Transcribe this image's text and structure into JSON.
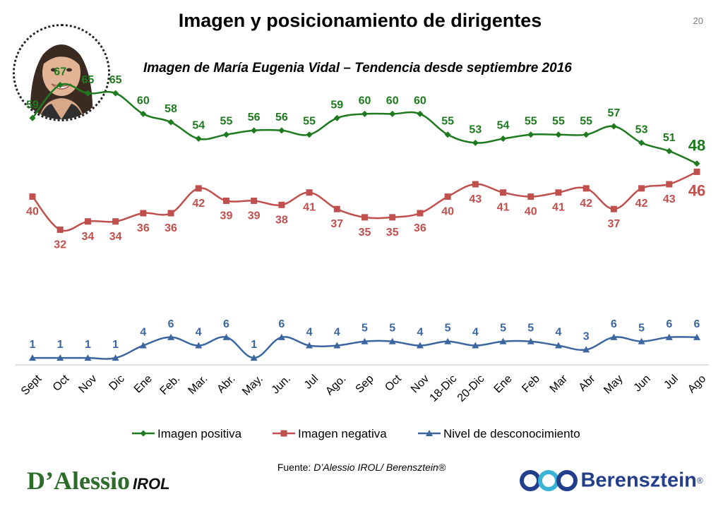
{
  "header": {
    "title": "Imagen y posicionamiento de dirigentes",
    "page_number": "20",
    "subtitle": "Imagen de María Eugenia Vidal – Tendencia desde septiembre 2016"
  },
  "footer": {
    "source_prefix": "Fuente: ",
    "source_text": "D’Alessio IROL/ Berensztein®",
    "logo_left_main": "D’Alessio",
    "logo_left_sub": "IROL",
    "logo_right": "Berensztein",
    "logo_right_mark": "®"
  },
  "chart_data": {
    "type": "line",
    "categories": [
      "Sept",
      "Oct",
      "Nov",
      "Dic",
      "Ene",
      "Feb.",
      "Mar.",
      "Abr.",
      "May.",
      "Jun.",
      "Jul",
      "Ago.",
      "Sep",
      "Oct",
      "Nov",
      "18-Dic",
      "20-Dic",
      "Ene",
      "Feb",
      "Mar",
      "Abr",
      "May",
      "Jun",
      "Jul",
      "Ago"
    ],
    "series": [
      {
        "name": "Imagen positiva",
        "color": "#1e7a1e",
        "marker": "diamond",
        "values": [
          59,
          67,
          65,
          65,
          60,
          58,
          54,
          55,
          56,
          56,
          55,
          59,
          60,
          60,
          60,
          55,
          53,
          54,
          55,
          55,
          55,
          57,
          53,
          51,
          48
        ]
      },
      {
        "name": "Imagen negativa",
        "color": "#c0504d",
        "marker": "square",
        "values": [
          40,
          32,
          34,
          34,
          36,
          36,
          42,
          39,
          39,
          38,
          41,
          37,
          35,
          35,
          36,
          40,
          43,
          41,
          40,
          41,
          42,
          37,
          42,
          43,
          46
        ]
      },
      {
        "name": "Nivel de desconocimiento",
        "color": "#3b66a0",
        "marker": "triangle",
        "values": [
          1,
          1,
          1,
          1,
          4,
          6,
          4,
          6,
          1,
          6,
          4,
          4,
          5,
          5,
          4,
          5,
          4,
          5,
          5,
          4,
          3,
          6,
          5,
          6,
          6
        ]
      }
    ],
    "legend_position": "bottom",
    "grid": false,
    "highlight_last_point": true
  }
}
